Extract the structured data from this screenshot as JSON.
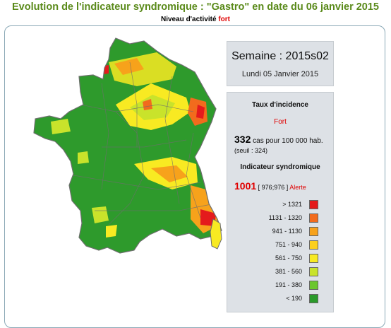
{
  "header": {
    "title": "Evolution de l'indicateur syndromique : \"Gastro\" en date du 06 janvier 2015",
    "subtitle_prefix": "Niveau d'activité",
    "subtitle_level": "fort"
  },
  "week": {
    "label": "Semaine : 2015s02",
    "date": "Lundi 05 Janvier 2015"
  },
  "incidence": {
    "title": "Taux d'incidence",
    "level": "Fort",
    "value": "332",
    "unit": "cas pour 100 000 hab.",
    "threshold": "(seuil : 324)"
  },
  "indicator": {
    "title": "Indicateur syndromique",
    "value": "1001",
    "interval": "[ 976;976 ]",
    "status": "Alerte"
  },
  "legend": [
    {
      "label": "> 1321",
      "color": "#e41a1c"
    },
    {
      "label": "1131 - 1320",
      "color": "#f26b1d"
    },
    {
      "label": "941 - 1130",
      "color": "#f7a21b"
    },
    {
      "label": "751 - 940",
      "color": "#fbcf1d"
    },
    {
      "label": "561 - 750",
      "color": "#f8ea22"
    },
    {
      "label": "381 - 560",
      "color": "#c9e32b"
    },
    {
      "label": "191 - 380",
      "color": "#6cc62e"
    },
    {
      "label": "< 190",
      "color": "#2a9a2a"
    }
  ],
  "map": {
    "region": "France",
    "base_color": "#2e9a2c",
    "border_color": "#6e6e6e"
  }
}
